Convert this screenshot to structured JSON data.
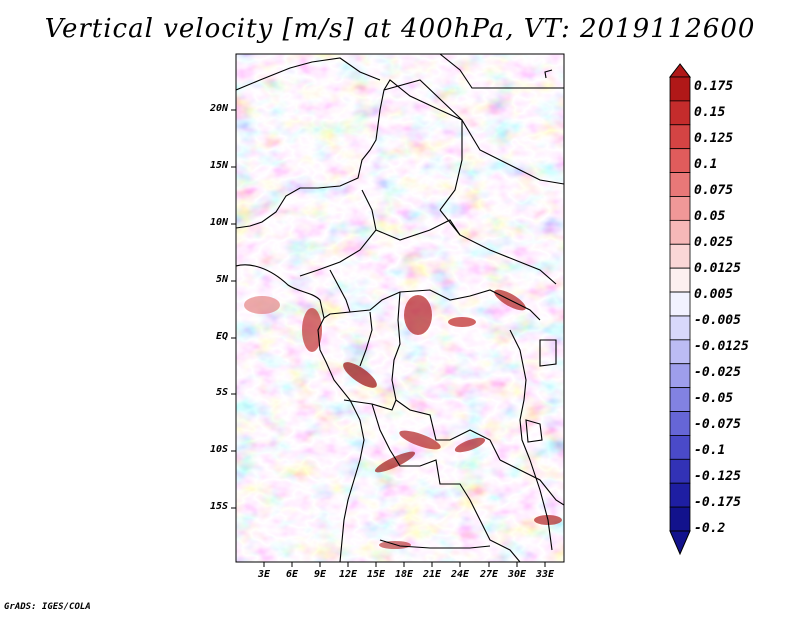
{
  "title": "Vertical velocity [m/s] at 400hPa, VT: 2019112600",
  "credit": "GrADS: IGES/COLA",
  "map": {
    "lat_labels": [
      "20N",
      "15N",
      "10N",
      "5N",
      "EQ",
      "5S",
      "10S",
      "15S"
    ],
    "lon_labels": [
      "3E",
      "6E",
      "9E",
      "12E",
      "15E",
      "18E",
      "21E",
      "24E",
      "27E",
      "30E",
      "33E"
    ]
  },
  "colorbar": {
    "labels": [
      "0.175",
      "0.15",
      "0.125",
      "0.1",
      "0.075",
      "0.05",
      "0.025",
      "0.0125",
      "0.005",
      "-0.005",
      "-0.0125",
      "-0.025",
      "-0.05",
      "-0.075",
      "-0.1",
      "-0.125",
      "-0.175",
      "-0.2"
    ],
    "colors": [
      "#b01818",
      "#c42c2c",
      "#d44444",
      "#e05c5c",
      "#e87878",
      "#f09898",
      "#f6b8b8",
      "#fad6d6",
      "#fdf0f0",
      "#f2f2ff",
      "#d8d8fb",
      "#bcbcf4",
      "#9e9eec",
      "#8282e2",
      "#6666d6",
      "#4a4ac8",
      "#3232b6",
      "#1e1ea2",
      "#12128c"
    ]
  }
}
